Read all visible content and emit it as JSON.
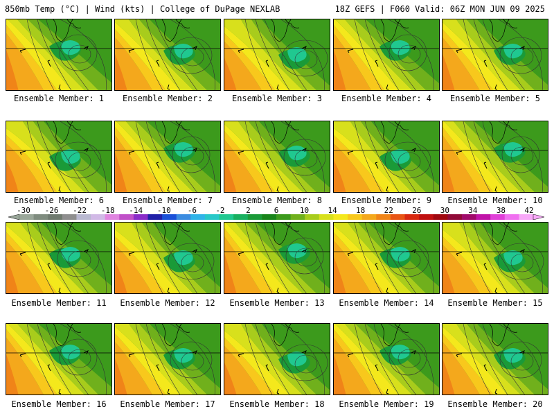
{
  "header": {
    "left": "850mb Temp (°C) | Wind (kts) | College of DuPage NEXLAB",
    "right": "18Z GEFS | F060 Valid: 06Z MON JUN 09 2025"
  },
  "members": [
    "Ensemble Member: 1",
    "Ensemble Member: 2",
    "Ensemble Member: 3",
    "Ensemble Member: 4",
    "Ensemble Member: 5",
    "Ensemble Member: 6",
    "Ensemble Member: 7",
    "Ensemble Member: 8",
    "Ensemble Member: 9",
    "Ensemble Member: 10",
    "Ensemble Member: 11",
    "Ensemble Member: 12",
    "Ensemble Member: 13",
    "Ensemble Member: 14",
    "Ensemble Member: 15",
    "Ensemble Member: 16",
    "Ensemble Member: 17",
    "Ensemble Member: 18",
    "Ensemble Member: 19",
    "Ensemble Member: 20"
  ],
  "colorbar": {
    "labels": [
      "-30",
      "-26",
      "-22",
      "-18",
      "-14",
      "-10",
      "-6",
      "-2",
      "2",
      "6",
      "10",
      "14",
      "18",
      "22",
      "26",
      "30",
      "34",
      "38",
      "42"
    ],
    "colors": [
      "#9aa79a",
      "#7f8c7f",
      "#6f7a6f",
      "#8e8e8e",
      "#b9b9d1",
      "#d1b9e6",
      "#e085e0",
      "#c050c8",
      "#8a2bc8",
      "#2020a8",
      "#1a50d8",
      "#3c8ce0",
      "#30b4e8",
      "#28c8c8",
      "#20c890",
      "#18b060",
      "#1a9a38",
      "#18841a",
      "#3c9a1c",
      "#70b01c",
      "#a8cc1c",
      "#d8e01c",
      "#f4e81c",
      "#f8c81c",
      "#f4a81c",
      "#f08418",
      "#e85414",
      "#d82810",
      "#c01010",
      "#a00810",
      "#900a38",
      "#a00a6a",
      "#c014a8",
      "#e040d8",
      "#f070f0",
      "#f8a8f8"
    ]
  },
  "fills": {
    "hot": "#f08418",
    "orange": "#f4a81c",
    "ltorange": "#f8c81c",
    "yellow": "#f4e81c",
    "ltyellow": "#d8e01c",
    "yg": "#a8cc1c",
    "lgreen": "#70b01c",
    "green": "#3c9a1c",
    "dgreen": "#1a9a38",
    "teal": "#20c890"
  }
}
